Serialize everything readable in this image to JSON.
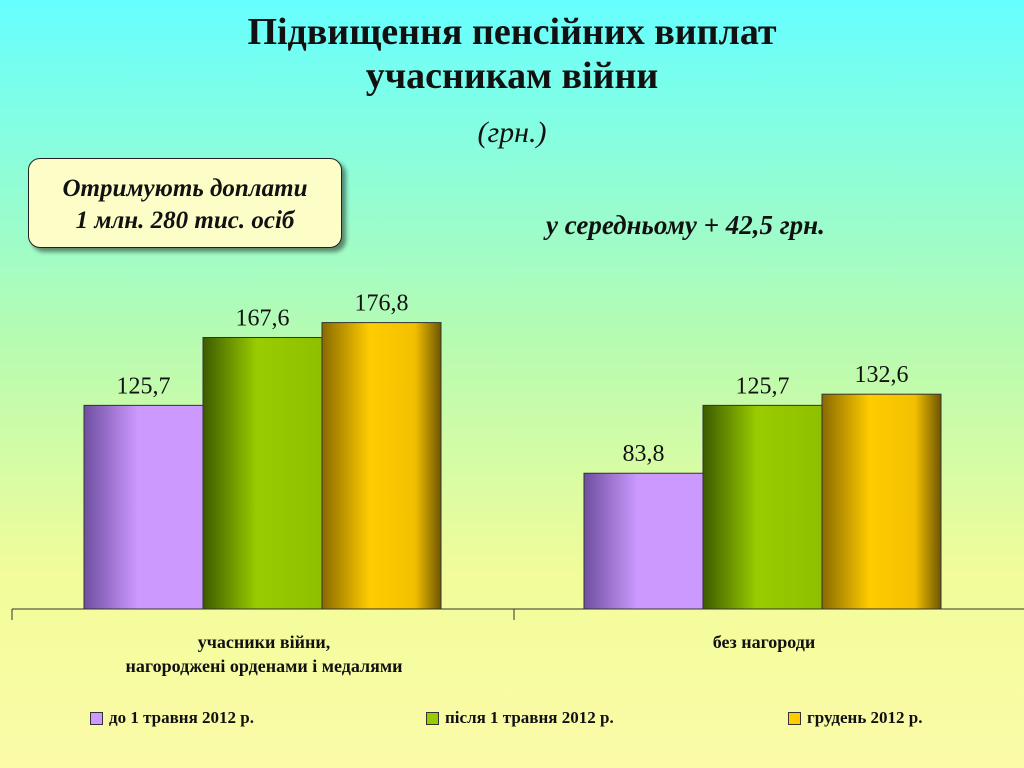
{
  "title_line1": "Підвищення пенсійних виплат",
  "title_line2": "учасникам війни",
  "subtitle": "(грн.)",
  "callout_line1": "Отримують доплати",
  "callout_line2": "1 млн. 280 тис. осіб",
  "average_note": "у середньому + 42,5 грн.",
  "colors": {
    "series1": "#cc99ff",
    "series2": "#99cc00",
    "series3": "#ffcc00"
  },
  "chart_data": {
    "type": "bar",
    "categories": [
      [
        "учасники війни,",
        "нагороджені орденами і медалями"
      ],
      [
        "без нагороди"
      ]
    ],
    "series": [
      {
        "name": "до 1 травня 2012 р.",
        "values": [
          125.7,
          83.8
        ],
        "labels": [
          "125,7",
          "83,8"
        ]
      },
      {
        "name": "після 1 травня 2012 р.",
        "values": [
          167.6,
          125.7
        ],
        "labels": [
          "167,6",
          "125,7"
        ]
      },
      {
        "name": "грудень 2012 р.",
        "values": [
          176.8,
          132.6
        ],
        "labels": [
          "176,8",
          "132,6"
        ]
      }
    ],
    "ylim": [
      0,
      200
    ],
    "grid": false,
    "legend": "bottom"
  }
}
